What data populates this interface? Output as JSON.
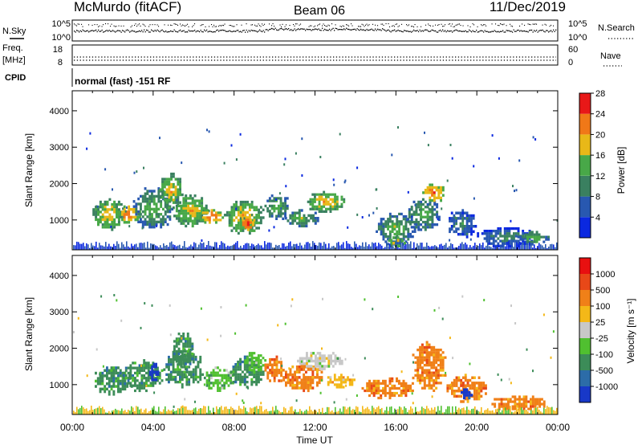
{
  "header": {
    "title": "McMurdo (fitACF)",
    "beam": "Beam 06",
    "date": "11/Dec/2019"
  },
  "top_panels": {
    "nsky_label": "N.Sky",
    "nsearch_label": "N.Search",
    "nsky_ticks": [
      "10^5",
      "10^0"
    ],
    "nsearch_ticks": [
      "10^5",
      "10^0"
    ],
    "freq_label": "Freq.",
    "freq_unit": "[MHz]",
    "freq_ticks": [
      "18",
      "8"
    ],
    "nave_label": "Nave",
    "nave_ticks": [
      "60",
      "0"
    ],
    "cpid_label": "CPID",
    "cpid_text": "normal (fast) -151 RF"
  },
  "chart_data": [
    {
      "type": "heatmap",
      "name": "power",
      "ylabel": "Slant Range [km]",
      "ylim": [
        180,
        4550
      ],
      "yticks": [
        "1000",
        "2000",
        "3000",
        "4000"
      ],
      "xlim": [
        0,
        24
      ],
      "colorbar_label": "Power [dB]",
      "colorbar_ticks": [
        "4",
        "8",
        "12",
        "16",
        "20",
        "24",
        "28"
      ],
      "colorbar_colors": [
        "#0a28e0",
        "#2858b0",
        "#3a8060",
        "#48a848",
        "#e8b818",
        "#f07818",
        "#e81818"
      ],
      "regions": [
        {
          "t0": 1.0,
          "t1": 2.6,
          "r0": 700,
          "r1": 1600,
          "level": 4
        },
        {
          "t0": 2.2,
          "t1": 3.4,
          "r0": 900,
          "r1": 1400,
          "level": 5
        },
        {
          "t0": 3.0,
          "t1": 5.0,
          "r0": 700,
          "r1": 1900,
          "level": 3
        },
        {
          "t0": 4.3,
          "t1": 5.5,
          "r0": 1300,
          "r1": 2300,
          "level": 4
        },
        {
          "t0": 5.0,
          "t1": 6.8,
          "r0": 800,
          "r1": 1700,
          "level": 4
        },
        {
          "t0": 6.2,
          "t1": 7.6,
          "r0": 900,
          "r1": 1300,
          "level": 5
        },
        {
          "t0": 7.5,
          "t1": 9.5,
          "r0": 600,
          "r1": 1600,
          "level": 4
        },
        {
          "t0": 8.4,
          "t1": 9.0,
          "r0": 700,
          "r1": 1100,
          "level": 6
        },
        {
          "t0": 9.5,
          "t1": 10.8,
          "r0": 1000,
          "r1": 1700,
          "level": 3
        },
        {
          "t0": 10.5,
          "t1": 12.2,
          "r0": 800,
          "r1": 1300,
          "level": 3
        },
        {
          "t0": 11.5,
          "t1": 13.6,
          "r0": 1200,
          "r1": 1800,
          "level": 4
        },
        {
          "t0": 15.0,
          "t1": 17.0,
          "r0": 300,
          "r1": 1200,
          "level": 3
        },
        {
          "t0": 15.5,
          "t1": 16.5,
          "r0": 250,
          "r1": 550,
          "level": 4
        },
        {
          "t0": 16.5,
          "t1": 18.2,
          "r0": 700,
          "r1": 1600,
          "level": 3
        },
        {
          "t0": 17.3,
          "t1": 18.5,
          "r0": 1500,
          "r1": 2000,
          "level": 5
        },
        {
          "t0": 18.5,
          "t1": 20.0,
          "r0": 500,
          "r1": 1300,
          "level": 2
        },
        {
          "t0": 20.0,
          "t1": 23.0,
          "r0": 250,
          "r1": 800,
          "level": 2
        },
        {
          "t0": 22.0,
          "t1": 23.6,
          "r0": 300,
          "r1": 700,
          "level": 3
        }
      ]
    },
    {
      "type": "heatmap",
      "name": "velocity",
      "ylabel": "Slant Range [km]",
      "ylim": [
        180,
        4550
      ],
      "yticks": [
        "1000",
        "2000",
        "3000",
        "4000"
      ],
      "xlim": [
        0,
        24
      ],
      "xlabel": "Time UT",
      "xticks": [
        "00:00",
        "04:00",
        "08:00",
        "12:00",
        "16:00",
        "20:00",
        "00:00"
      ],
      "colorbar_label": "Velocity [m s⁻¹]",
      "colorbar_ticks": [
        "1000",
        "500",
        "100",
        "25",
        "-25",
        "-100",
        "-500",
        "-1000"
      ],
      "colorbar_colors": [
        "#1838c8",
        "#2c6ca8",
        "#3c8c58",
        "#50c030",
        "#c8c8c8",
        "#f4b818",
        "#f08018",
        "#e84818",
        "#e81010"
      ],
      "regions": [
        {
          "t0": 1.0,
          "t1": 3.0,
          "r0": 700,
          "r1": 1500,
          "level": 2
        },
        {
          "t0": 2.5,
          "t1": 4.5,
          "r0": 800,
          "r1": 1700,
          "level": 2
        },
        {
          "t0": 3.8,
          "t1": 4.3,
          "r0": 1100,
          "r1": 1600,
          "level": 0
        },
        {
          "t0": 4.5,
          "t1": 6.5,
          "r0": 900,
          "r1": 2000,
          "level": 2
        },
        {
          "t0": 5.0,
          "t1": 6.0,
          "r0": 1400,
          "r1": 2500,
          "level": 2
        },
        {
          "t0": 6.5,
          "t1": 8.0,
          "r0": 800,
          "r1": 1500,
          "level": 3
        },
        {
          "t0": 7.8,
          "t1": 9.5,
          "r0": 900,
          "r1": 1800,
          "level": 2
        },
        {
          "t0": 8.5,
          "t1": 9.6,
          "r0": 1300,
          "r1": 1900,
          "level": 3
        },
        {
          "t0": 9.5,
          "t1": 10.5,
          "r0": 1000,
          "r1": 1800,
          "level": 6
        },
        {
          "t0": 10.4,
          "t1": 12.5,
          "r0": 800,
          "r1": 1600,
          "level": 6
        },
        {
          "t0": 11.0,
          "t1": 13.5,
          "r0": 1400,
          "r1": 1900,
          "level": 4
        },
        {
          "t0": 12.5,
          "t1": 14.0,
          "r0": 900,
          "r1": 1300,
          "level": 5
        },
        {
          "t0": 14.3,
          "t1": 17.0,
          "r0": 600,
          "r1": 1200,
          "level": 6
        },
        {
          "t0": 16.8,
          "t1": 18.5,
          "r0": 800,
          "r1": 2200,
          "level": 6
        },
        {
          "t0": 18.5,
          "t1": 20.5,
          "r0": 500,
          "r1": 1300,
          "level": 6
        },
        {
          "t0": 20.5,
          "t1": 23.5,
          "r0": 300,
          "r1": 700,
          "level": 6
        },
        {
          "t0": 19.2,
          "t1": 19.8,
          "r0": 600,
          "r1": 900,
          "level": 0
        }
      ]
    }
  ]
}
